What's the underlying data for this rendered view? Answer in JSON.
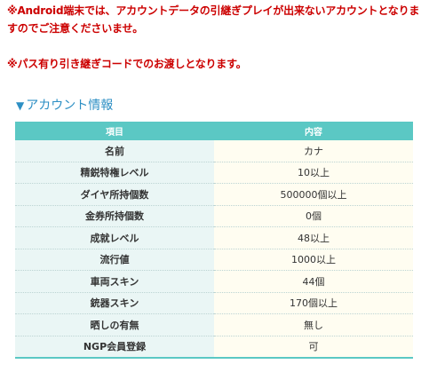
{
  "notices": [
    "※Android端末では、アカウントデータの引継ぎプレイが出来ないアカウントとなりますのでご注意くださいませ。",
    "※パス有り引き継ぎコードでのお渡しとなります。"
  ],
  "section": {
    "marker": "▼",
    "title": "アカウント情報"
  },
  "table": {
    "headers": [
      "項目",
      "内容"
    ],
    "rows": [
      {
        "label": "名前",
        "value": "カナ"
      },
      {
        "label": "精鋭特権レベル",
        "value": "10以上"
      },
      {
        "label": "ダイヤ所持個数",
        "value": "500000個以上"
      },
      {
        "label": "金券所持個数",
        "value": "0個"
      },
      {
        "label": "成就レベル",
        "value": "48以上"
      },
      {
        "label": "流行値",
        "value": "1000以上"
      },
      {
        "label": "車両スキン",
        "value": "44個"
      },
      {
        "label": "銃器スキン",
        "value": "170個以上"
      },
      {
        "label": "晒しの有無",
        "value": "無し"
      },
      {
        "label": "NGP会員登録",
        "value": "可"
      }
    ]
  },
  "colors": {
    "notice": "#cc0000",
    "title": "#2d8fc4",
    "header_bg": "#5bc8c4",
    "key_bg": "#eaf6f5",
    "value_bg": "#fffdf1"
  }
}
